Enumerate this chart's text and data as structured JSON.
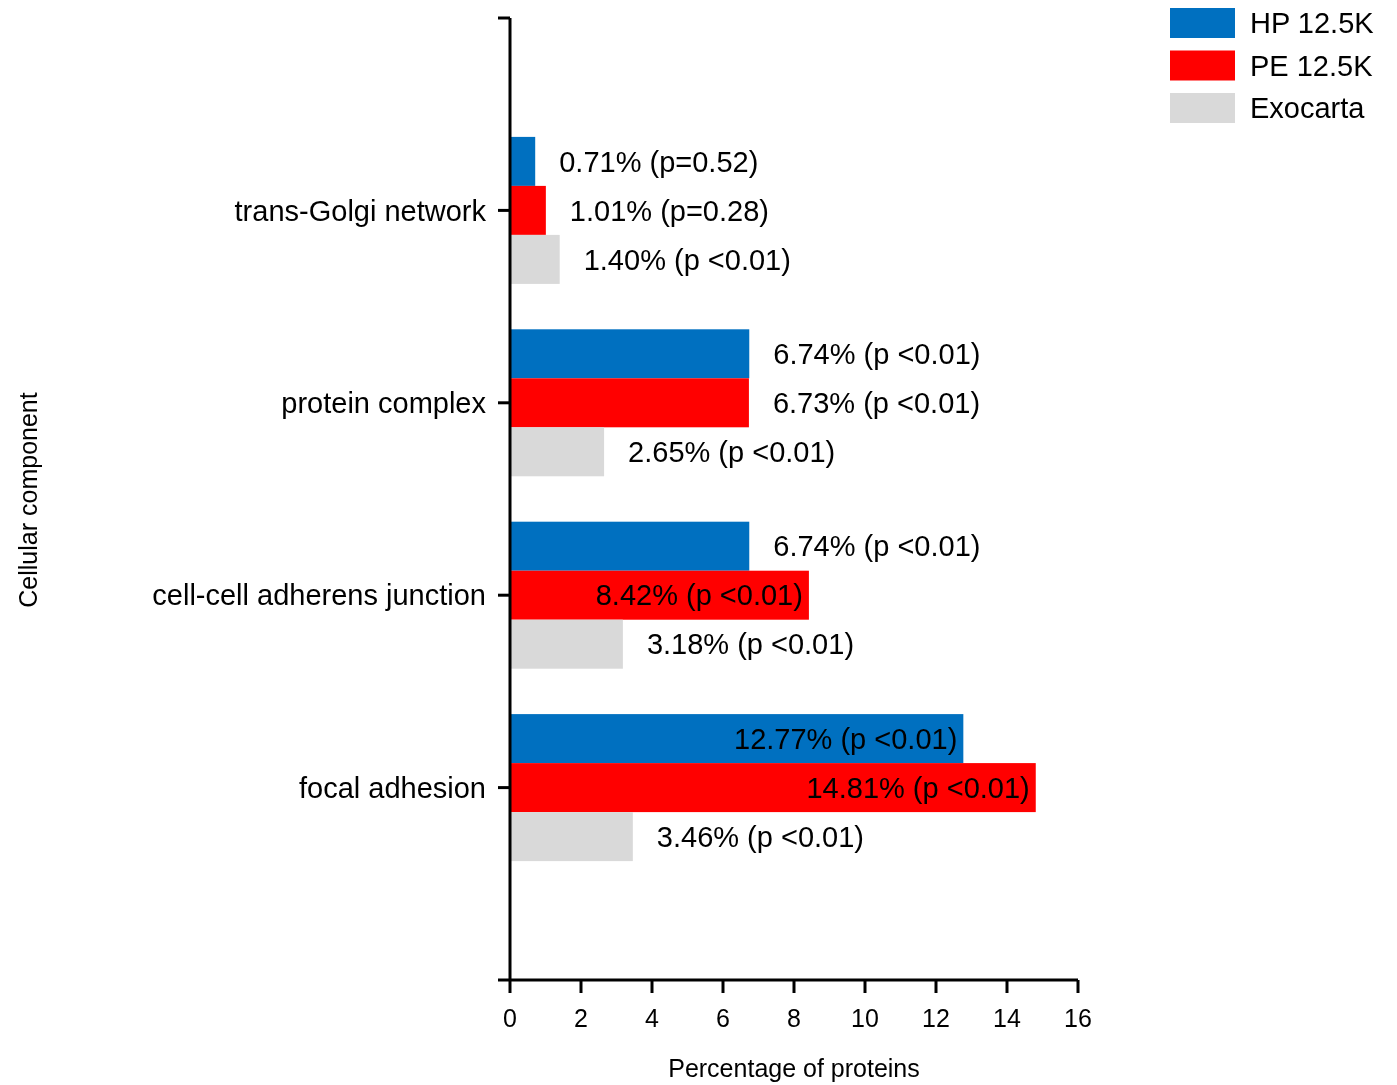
{
  "chart_data": {
    "type": "bar",
    "orientation": "horizontal",
    "ylabel": "Cellular component",
    "xlabel": "Percentage of proteins",
    "categories": [
      "trans-Golgi network",
      "protein complex",
      "cell-cell adherens junction",
      "focal adhesion"
    ],
    "series": [
      {
        "name": "HP 12.5K",
        "color": "#0070c0",
        "values": [
          0.71,
          6.74,
          6.74,
          12.77
        ],
        "value_labels": [
          "0.71% (p=0.52)",
          "6.74% (p <0.01)",
          "6.74% (p <0.01)",
          "12.77% (p <0.01)"
        ]
      },
      {
        "name": "PE 12.5K",
        "color": "#ff0000",
        "values": [
          1.01,
          6.73,
          8.42,
          14.81
        ],
        "value_labels": [
          "1.01% (p=0.28)",
          "6.73% (p <0.01)",
          "8.42% (p <0.01)",
          "14.81% (p <0.01)"
        ]
      },
      {
        "name": "Exocarta",
        "color": "#d9d9d9",
        "values": [
          1.4,
          2.65,
          3.18,
          3.46
        ],
        "value_labels": [
          "1.40% (p <0.01)",
          "2.65% (p <0.01)",
          "3.18% (p <0.01)",
          "3.46% (p <0.01)"
        ]
      }
    ],
    "xlim": [
      0,
      16
    ],
    "xticks": [
      0,
      2,
      4,
      6,
      8,
      10,
      12,
      14,
      16
    ],
    "grid": false,
    "legend": "top right"
  }
}
